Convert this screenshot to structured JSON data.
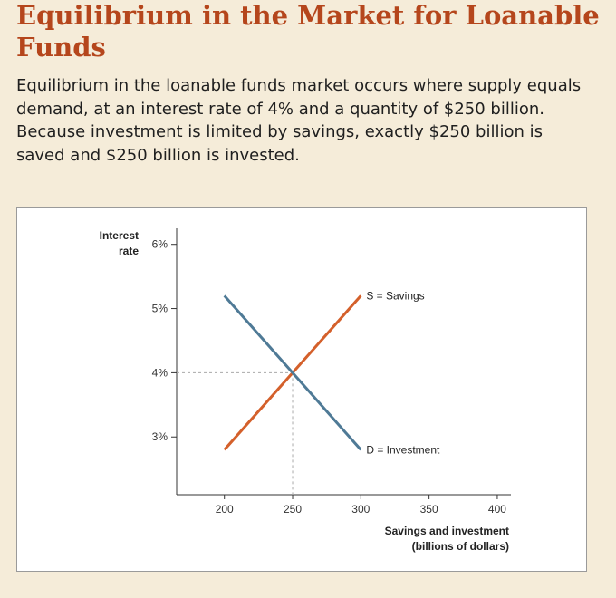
{
  "page": {
    "title": "Equilibrium in the Market for Loanable Funds",
    "description": "Equilibrium in the loanable funds market occurs where supply equals demand, at an interest rate of 4% and a quantity of $250 billion. Because investment is limited by savings, exactly $250 billion is saved and $250 billion is invested."
  },
  "colors": {
    "title": "#b5461c",
    "background": "#f5ecd9",
    "supply": "#d4602b",
    "demand": "#4f7a96",
    "guide": "#aaaaaa"
  },
  "chart_data": {
    "type": "line",
    "ylabel_line1": "Interest",
    "ylabel_line2": "rate",
    "xlabel_line1": "Savings and investment",
    "xlabel_line2": "(billions of dollars)",
    "x_ticks": [
      200,
      250,
      300,
      350,
      400
    ],
    "x_tick_labels": [
      "200",
      "250",
      "300",
      "350",
      "400"
    ],
    "y_ticks": [
      3,
      4,
      5,
      6
    ],
    "y_tick_labels": [
      "3%",
      "4%",
      "5%",
      "6%"
    ],
    "xlim": [
      165,
      410
    ],
    "ylim": [
      2.1,
      6.25
    ],
    "series": [
      {
        "name": "S = Savings",
        "color": "#d4602b",
        "points": [
          {
            "x": 200,
            "y": 2.8
          },
          {
            "x": 300,
            "y": 5.2
          }
        ]
      },
      {
        "name": "D = Investment",
        "color": "#4f7a96",
        "points": [
          {
            "x": 200,
            "y": 5.2
          },
          {
            "x": 300,
            "y": 2.8
          }
        ]
      }
    ],
    "equilibrium": {
      "x": 250,
      "y": 4
    }
  }
}
